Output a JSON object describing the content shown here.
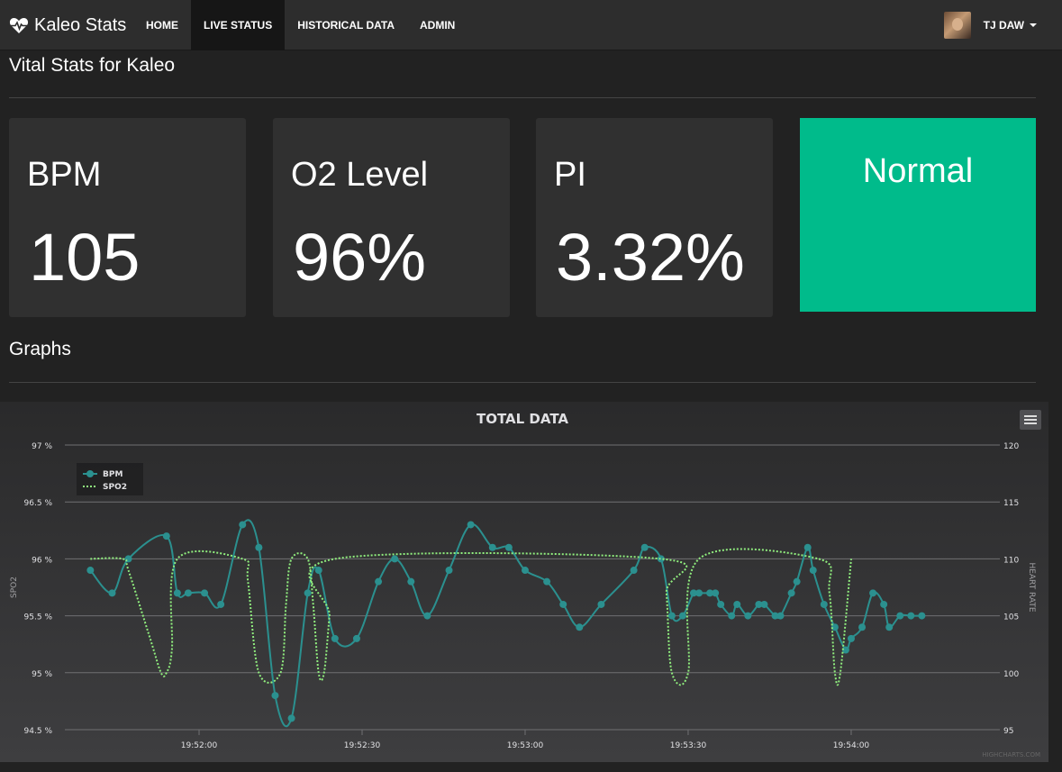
{
  "nav": {
    "brand": "Kaleo Stats",
    "items": [
      {
        "label": "HOME",
        "active": false
      },
      {
        "label": "LIVE STATUS",
        "active": true
      },
      {
        "label": "HISTORICAL DATA",
        "active": false
      },
      {
        "label": "ADMIN",
        "active": false
      }
    ],
    "user": "TJ DAW"
  },
  "page": {
    "title": "Vital Stats for Kaleo",
    "graphs_title": "Graphs"
  },
  "stats": [
    {
      "label": "BPM",
      "value": "105"
    },
    {
      "label": "O2 Level",
      "value": "96%"
    },
    {
      "label": "PI",
      "value": "3.32%"
    }
  ],
  "status": {
    "label": "Normal",
    "color": "#00bb8b"
  },
  "chart_data": {
    "type": "line",
    "title": "TOTAL DATA",
    "credit": "HIGHCHARTS.COM",
    "ylabel_left": "SPO2",
    "ylabel_right": "HEART RATE",
    "left_axis": {
      "min": 94.5,
      "max": 97,
      "ticks": [
        "97 %",
        "96.5 %",
        "96 %",
        "95.5 %",
        "95 %",
        "94.5 %"
      ]
    },
    "right_axis": {
      "min": 95,
      "max": 120,
      "ticks": [
        "120",
        "115",
        "110",
        "105",
        "100",
        "95"
      ]
    },
    "x_ticks": [
      "19:52:00",
      "19:52:30",
      "19:53:00",
      "19:53:30",
      "19:54:00"
    ],
    "x_tick_seconds": [
      0,
      30,
      60,
      90,
      120
    ],
    "x_range_seconds": [
      -20,
      25
    ],
    "legend": {
      "position": "top-left",
      "entries": [
        "BPM",
        "SPO2"
      ]
    },
    "series": [
      {
        "name": "BPM",
        "color": "#2b908f",
        "axis": "right",
        "points": [
          [
            -20,
            109
          ],
          [
            -16,
            107
          ],
          [
            -13,
            110
          ],
          [
            -6,
            112
          ],
          [
            -4,
            107
          ],
          [
            -2,
            107
          ],
          [
            1,
            107
          ],
          [
            4,
            106
          ],
          [
            8,
            113
          ],
          [
            11,
            111
          ],
          [
            14,
            98
          ],
          [
            17,
            96
          ],
          [
            20,
            107
          ],
          [
            22,
            109
          ],
          [
            25,
            103
          ],
          [
            29,
            103
          ],
          [
            33,
            108
          ],
          [
            36,
            110
          ],
          [
            39,
            108
          ],
          [
            42,
            105
          ],
          [
            46,
            109
          ],
          [
            50,
            113
          ],
          [
            54,
            111
          ],
          [
            57,
            111
          ],
          [
            60,
            109
          ],
          [
            64,
            108
          ],
          [
            67,
            106
          ],
          [
            70,
            104
          ],
          [
            74,
            106
          ],
          [
            80,
            109
          ],
          [
            82,
            111
          ],
          [
            85,
            110
          ],
          [
            87,
            105
          ],
          [
            89,
            105
          ],
          [
            91,
            107
          ],
          [
            92,
            107
          ],
          [
            94,
            107
          ],
          [
            95,
            107
          ],
          [
            96,
            106
          ],
          [
            98,
            105
          ],
          [
            99,
            106
          ],
          [
            101,
            105
          ],
          [
            103,
            106
          ],
          [
            104,
            106
          ],
          [
            106,
            105
          ],
          [
            107,
            105
          ],
          [
            109,
            107
          ],
          [
            110,
            108
          ],
          [
            112,
            111
          ],
          [
            113,
            109
          ],
          [
            115,
            106
          ],
          [
            117,
            104
          ],
          [
            119,
            102
          ],
          [
            120,
            103
          ],
          [
            122,
            104
          ],
          [
            124,
            107
          ],
          [
            126,
            106
          ],
          [
            127,
            104
          ],
          [
            129,
            105
          ],
          [
            131,
            105
          ],
          [
            133,
            105
          ]
        ]
      },
      {
        "name": "SPO2",
        "color": "#90ee7e",
        "axis": "left",
        "points": [
          [
            -20,
            96
          ],
          [
            -14,
            96
          ],
          [
            -13,
            95.9
          ],
          [
            -9,
            95.3
          ],
          [
            -7,
            95
          ],
          [
            -6,
            95
          ],
          [
            -5,
            95.2
          ],
          [
            -4,
            96
          ],
          [
            8,
            96
          ],
          [
            9,
            95.8
          ],
          [
            11,
            95
          ],
          [
            15,
            95
          ],
          [
            16,
            95.6
          ],
          [
            17,
            96
          ],
          [
            20,
            96
          ],
          [
            21,
            95.6
          ],
          [
            22,
            95
          ],
          [
            23,
            95
          ],
          [
            24,
            95.5
          ],
          [
            25,
            96
          ],
          [
            85,
            96
          ],
          [
            86,
            95.7
          ],
          [
            87,
            95
          ],
          [
            90,
            95
          ],
          [
            92,
            96
          ],
          [
            114,
            96
          ],
          [
            116,
            95.7
          ],
          [
            117,
            95
          ],
          [
            118,
            95
          ],
          [
            120,
            96
          ],
          [
            160,
            96
          ]
        ]
      }
    ]
  }
}
